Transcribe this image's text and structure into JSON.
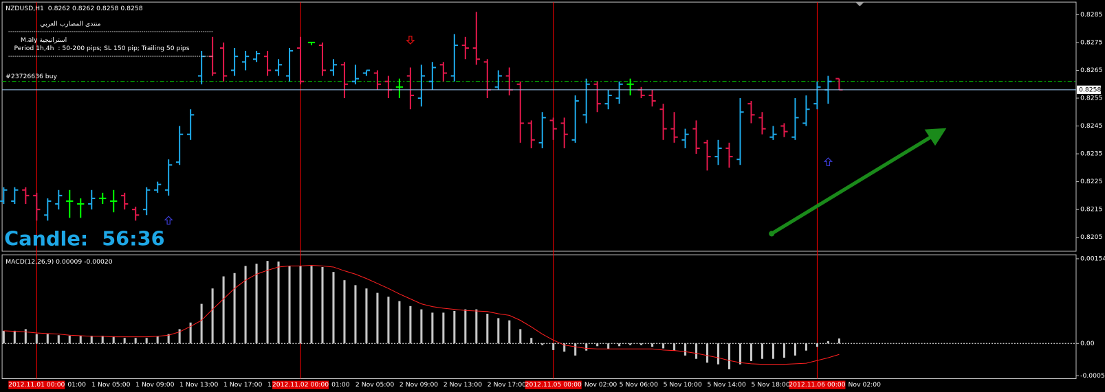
{
  "chart_data": [
    {
      "type": "ohlc",
      "title": "NZDUSD,H1  0.8262 0.8262 0.8258 0.8258",
      "annotations": [
        "منتدى المضارب العربي",
        "M.aly استراتيجية",
        "Period 1h,4h  : 50-200 pips; SL 150 pip; Trailing 50 pips"
      ],
      "timer": "Candle:  56:36",
      "order": {
        "label": "#23726636 buy",
        "price": 0.8261,
        "color": "#00b000"
      },
      "bid_line_color": "#8fb8de",
      "up_color": "#1ea7e6",
      "down_color": "#e0184a",
      "flat_color": "#00ff00",
      "separator_color": "#ff0000",
      "ylim": [
        0.82,
        0.8289
      ],
      "yticks": [
        0.8285,
        0.8275,
        0.8265,
        0.8255,
        0.8245,
        0.8235,
        0.8225,
        0.8215,
        0.8205
      ],
      "categories": [
        null,
        null,
        null,
        "2012.11.01 00:00",
        "01:00",
        null,
        null,
        null,
        "1 Nov 05:00",
        null,
        null,
        null,
        "1 Nov 09:00",
        null,
        null,
        null,
        "1 Nov 13:00",
        null,
        null,
        null,
        "1 Nov 17:00",
        null,
        null,
        null,
        "1",
        null,
        null,
        "2012.11.02 00:00",
        "01:00",
        null,
        null,
        null,
        "2 Nov 05:00",
        null,
        null,
        null,
        "2 Nov 09:00",
        null,
        null,
        null,
        "2 Nov 13:00",
        null,
        null,
        null,
        "2 Nov 17:00",
        null,
        null,
        null,
        null,
        null,
        "2012.11.05 00:00",
        null,
        "Nov 02:00",
        null,
        null,
        null,
        "5 Nov 06:00",
        null,
        null,
        null,
        "5 Nov 10:00",
        null,
        null,
        null,
        "5 Nov 14:00",
        null,
        null,
        null,
        "5 Nov 18:00",
        null,
        null,
        null,
        null,
        null,
        "2012.11.06 00:00",
        null,
        "Nov 02:00"
      ],
      "open": [
        0.8218,
        0.8218,
        0.8222,
        0.822,
        0.8213,
        0.8217,
        0.8218,
        0.8217,
        0.8217,
        0.8219,
        0.8218,
        0.822,
        0.8215,
        0.8215,
        0.8222,
        0.8222,
        0.8232,
        0.8242,
        0.8263,
        0.827,
        0.8273,
        0.8265,
        0.8268,
        0.8269,
        0.827,
        0.8265,
        0.8263,
        0.8273,
        0.8275,
        0.8274,
        0.8265,
        0.8267,
        0.8261,
        0.8264,
        0.8264,
        0.8261,
        0.8259,
        0.8263,
        0.8255,
        0.8261,
        0.8267,
        0.8263,
        0.8274,
        0.8273,
        0.8268,
        0.8259,
        0.8263,
        0.826,
        0.8246,
        0.8239,
        0.8247,
        0.8246,
        0.824,
        0.8249,
        0.826,
        0.8253,
        0.8255,
        0.826,
        0.8258,
        0.8256,
        0.8251,
        0.8244,
        0.824,
        0.8244,
        0.8239,
        0.8234,
        0.8237,
        0.8233,
        0.8253,
        0.8248,
        0.8241,
        0.8245,
        0.8241,
        0.8246,
        0.8253,
        0.8258,
        0.8262
      ],
      "high": [
        0.8223,
        0.8223,
        0.8223,
        0.8221,
        0.8219,
        0.8222,
        0.8222,
        0.8219,
        0.8222,
        0.8221,
        0.8222,
        0.8221,
        0.8216,
        0.8223,
        0.8225,
        0.8233,
        0.8245,
        0.8251,
        0.8272,
        0.8277,
        0.8275,
        0.8273,
        0.8272,
        0.8272,
        0.8272,
        0.8269,
        0.8273,
        0.8277,
        0.8275,
        0.8275,
        0.8269,
        0.8268,
        0.8267,
        0.8265,
        0.8265,
        0.8263,
        0.8262,
        0.8266,
        0.8267,
        0.8268,
        0.8268,
        0.8278,
        0.8277,
        0.8286,
        0.8269,
        0.8265,
        0.8266,
        0.8261,
        0.8247,
        0.825,
        0.8248,
        0.8248,
        0.8256,
        0.8262,
        0.8261,
        0.8258,
        0.8261,
        0.8262,
        0.8259,
        0.8258,
        0.8253,
        0.825,
        0.8244,
        0.8247,
        0.824,
        0.824,
        0.8239,
        0.8255,
        0.8254,
        0.825,
        0.8245,
        0.8246,
        0.8255,
        0.8256,
        0.8261,
        0.8263,
        0.8262
      ],
      "low": [
        0.8217,
        0.8217,
        0.8217,
        0.8211,
        0.8211,
        0.8215,
        0.8212,
        0.8212,
        0.8215,
        0.8217,
        0.8214,
        0.8215,
        0.8211,
        0.8213,
        0.8221,
        0.822,
        0.8231,
        0.824,
        0.826,
        0.8263,
        0.8261,
        0.8263,
        0.8265,
        0.8268,
        0.8263,
        0.8263,
        0.8261,
        0.826,
        0.8274,
        0.8263,
        0.8263,
        0.8255,
        0.826,
        0.8263,
        0.8258,
        0.8255,
        0.8255,
        0.8251,
        0.8252,
        0.8258,
        0.8261,
        0.8261,
        0.8269,
        0.8267,
        0.8255,
        0.8258,
        0.8256,
        0.8239,
        0.8237,
        0.8237,
        0.824,
        0.8237,
        0.8239,
        0.8246,
        0.825,
        0.8251,
        0.8253,
        0.8256,
        0.8255,
        0.8252,
        0.824,
        0.8239,
        0.8237,
        0.8235,
        0.8229,
        0.8231,
        0.823,
        0.8231,
        0.8246,
        0.8242,
        0.824,
        0.8241,
        0.824,
        0.8245,
        0.8251,
        0.8253,
        0.8258
      ],
      "close": [
        0.8222,
        0.8222,
        0.822,
        0.8215,
        0.8218,
        0.822,
        0.8218,
        0.8217,
        0.8219,
        0.8219,
        0.8218,
        0.8217,
        0.8213,
        0.8222,
        0.8224,
        0.8231,
        0.8242,
        0.8249,
        0.827,
        0.8264,
        0.8263,
        0.827,
        0.827,
        0.8271,
        0.8265,
        0.8267,
        0.8272,
        0.8261,
        0.8275,
        0.8265,
        0.8267,
        0.826,
        0.8262,
        0.8265,
        0.826,
        0.8258,
        0.8259,
        0.8256,
        0.8263,
        0.8266,
        0.8264,
        0.8274,
        0.8273,
        0.8269,
        0.8258,
        0.8263,
        0.8258,
        0.8246,
        0.824,
        0.8248,
        0.8244,
        0.8242,
        0.8254,
        0.826,
        0.8253,
        0.8256,
        0.826,
        0.826,
        0.8256,
        0.8254,
        0.8244,
        0.8241,
        0.8242,
        0.8237,
        0.8234,
        0.8237,
        0.8234,
        0.825,
        0.8249,
        0.8244,
        0.8242,
        0.8243,
        0.8248,
        0.8251,
        0.8259,
        0.8261,
        0.8258
      ],
      "up_arrows": [
        null,
        null,
        null,
        null,
        null,
        null,
        null,
        null,
        null,
        null,
        null,
        null,
        null,
        null,
        null,
        0.8211,
        null,
        null,
        null,
        null,
        null,
        null,
        null,
        null,
        null,
        null,
        null,
        null,
        null,
        null,
        null,
        null,
        null,
        null,
        null,
        null,
        null,
        null,
        null,
        null,
        null,
        null,
        null,
        null,
        null,
        null,
        null,
        null,
        null,
        null,
        null,
        null,
        null,
        null,
        null,
        null,
        null,
        null,
        null,
        null,
        null,
        null,
        null,
        null,
        null,
        null,
        null,
        null,
        null,
        null,
        null,
        null,
        null,
        null,
        null,
        0.8232,
        null
      ],
      "down_arrows": [
        null,
        null,
        null,
        null,
        null,
        null,
        null,
        null,
        null,
        null,
        null,
        null,
        null,
        null,
        null,
        null,
        null,
        null,
        null,
        null,
        null,
        null,
        null,
        null,
        null,
        null,
        null,
        null,
        null,
        null,
        null,
        null,
        null,
        null,
        null,
        null,
        null,
        0.8276,
        null,
        null,
        null,
        null,
        null,
        null,
        null,
        null,
        null,
        null,
        null,
        null,
        null,
        null,
        null,
        null,
        null,
        null,
        null,
        null,
        null,
        null,
        null,
        null,
        null,
        null,
        null,
        null,
        null,
        null,
        null,
        null,
        null,
        null,
        null,
        null,
        null,
        null,
        null
      ],
      "up_arrow_color": "#3a3ad0",
      "down_arrow_color": "#e01010"
    },
    {
      "type": "macd",
      "title": "MACD(12,26,9) 0.00009 -0.00020",
      "color": "#c8c8c8",
      "signal_color": "#ff2020",
      "ylim": [
        -0.00064,
        0.0016
      ],
      "yticks": [
        0.00154,
        {
          "value": 0,
          "label": "0.00"
        },
        -0.00059
      ],
      "values": [
        0.00023,
        0.00023,
        0.00026,
        0.00017,
        0.00017,
        0.00015,
        0.00014,
        0.00014,
        0.00014,
        0.00014,
        0.00013,
        0.0001,
        0.0001,
        0.0001,
        0.00013,
        0.00017,
        0.00026,
        0.00038,
        0.00072,
        0.001,
        0.00122,
        0.00128,
        0.00141,
        0.00145,
        0.0015,
        0.00149,
        0.00141,
        0.00141,
        0.00141,
        0.00139,
        0.0013,
        0.00115,
        0.00106,
        0.001,
        0.00092,
        0.00085,
        0.00077,
        0.00068,
        0.00062,
        0.00056,
        0.00056,
        0.00059,
        0.00062,
        0.00062,
        0.00054,
        0.00046,
        0.00042,
        0.00026,
        0.0001,
        -3e-05,
        -0.00012,
        -0.00015,
        -0.00022,
        -0.00013,
        -5e-05,
        -0.0001,
        -5e-05,
        -3e-05,
        -3e-05,
        -6e-05,
        -9e-05,
        -0.00013,
        -0.00022,
        -0.00028,
        -0.00035,
        -0.00038,
        -0.00047,
        -0.00038,
        -0.00032,
        -0.00028,
        -0.00028,
        -0.00026,
        -0.00022,
        -0.00013,
        -6e-05,
        4e-05,
        9e-05
      ],
      "signal": [
        0.00023,
        0.00022,
        0.00021,
        0.00019,
        0.00018,
        0.00017,
        0.00015,
        0.00014,
        0.00013,
        0.00013,
        0.00012,
        0.00012,
        0.00012,
        0.00012,
        0.00013,
        0.00015,
        0.00021,
        0.00031,
        0.00042,
        0.00062,
        0.00081,
        0.001,
        0.00115,
        0.00126,
        0.00133,
        0.00139,
        0.00141,
        0.00141,
        0.00142,
        0.00141,
        0.00139,
        0.00132,
        0.00126,
        0.00118,
        0.00109,
        0.001,
        0.0009,
        0.00081,
        0.00072,
        0.00067,
        0.00064,
        0.00062,
        0.0006,
        0.00059,
        0.00058,
        0.00054,
        0.00051,
        0.00042,
        0.0003,
        0.00017,
        6e-05,
        -3e-05,
        -6e-05,
        -9e-05,
        -0.0001,
        -0.0001,
        -0.0001,
        -0.0001,
        -0.0001,
        -0.0001,
        -0.00012,
        -0.00013,
        -0.00015,
        -0.00018,
        -0.00022,
        -0.00026,
        -0.00031,
        -0.00035,
        -0.00037,
        -0.00038,
        -0.00038,
        -0.00038,
        -0.00037,
        -0.00036,
        -0.00031,
        -0.00026,
        -0.0002
      ]
    }
  ]
}
